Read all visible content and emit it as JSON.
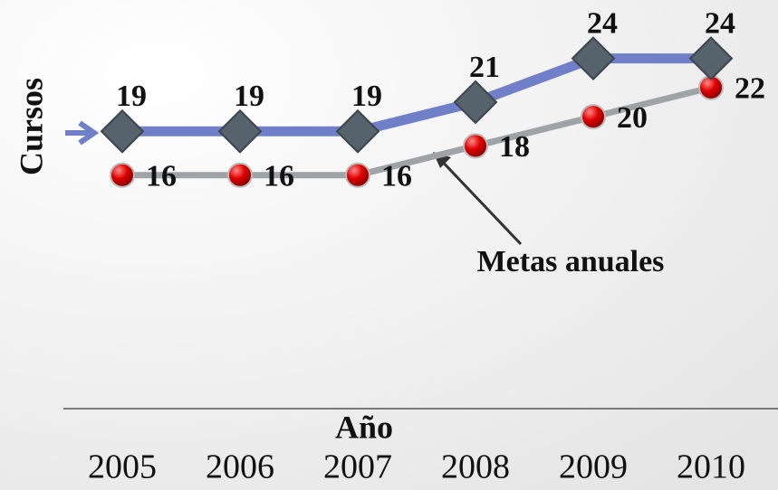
{
  "chart_data": {
    "type": "line",
    "y_label": "Cursos",
    "x_label": "Año",
    "annotation": "Metas anuales",
    "categories": [
      "2005",
      "2006",
      "2007",
      "2008",
      "2009",
      "2010"
    ],
    "series": [
      {
        "color": "#6f80c8",
        "marker_color": "#56626c",
        "marker": "diamond",
        "values": [
          19,
          19,
          19,
          21,
          24,
          24
        ]
      },
      {
        "color": "#9ea3a8",
        "marker_color": "#dd0000",
        "marker": "circle",
        "values": [
          16,
          16,
          16,
          18,
          20,
          22
        ]
      }
    ],
    "ylim": [
      0,
      28
    ]
  }
}
